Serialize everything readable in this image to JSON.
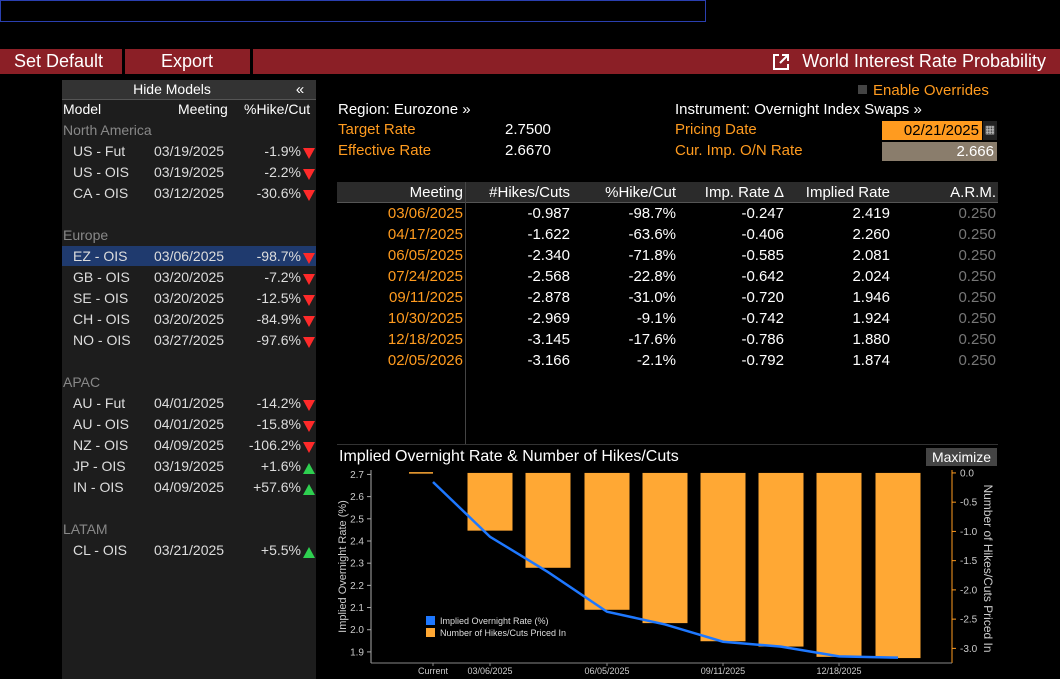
{
  "toolbar": {
    "set_default": "Set Default",
    "export": "Export",
    "title": "World Interest Rate Probability"
  },
  "left_panel": {
    "hide_models": "Hide Models",
    "collapse_glyph": "«",
    "columns": {
      "model": "Model",
      "meeting": "Meeting",
      "hike_cut": "%Hike/Cut"
    },
    "groups": [
      {
        "name": "North America",
        "rows": [
          {
            "model": "US - Fut",
            "meeting": "03/19/2025",
            "pct": "-1.9%",
            "dir": "down"
          },
          {
            "model": "US - OIS",
            "meeting": "03/19/2025",
            "pct": "-2.2%",
            "dir": "down"
          },
          {
            "model": "CA - OIS",
            "meeting": "03/12/2025",
            "pct": "-30.6%",
            "dir": "down"
          }
        ]
      },
      {
        "name": "Europe",
        "rows": [
          {
            "model": "EZ - OIS",
            "meeting": "03/06/2025",
            "pct": "-98.7%",
            "dir": "down",
            "selected": true
          },
          {
            "model": "GB - OIS",
            "meeting": "03/20/2025",
            "pct": "-7.2%",
            "dir": "down"
          },
          {
            "model": "SE - OIS",
            "meeting": "03/20/2025",
            "pct": "-12.5%",
            "dir": "down"
          },
          {
            "model": "CH - OIS",
            "meeting": "03/20/2025",
            "pct": "-84.9%",
            "dir": "down"
          },
          {
            "model": "NO - OIS",
            "meeting": "03/27/2025",
            "pct": "-97.6%",
            "dir": "down"
          }
        ]
      },
      {
        "name": "APAC",
        "rows": [
          {
            "model": "AU - Fut",
            "meeting": "04/01/2025",
            "pct": "-14.2%",
            "dir": "down"
          },
          {
            "model": "AU - OIS",
            "meeting": "04/01/2025",
            "pct": "-15.8%",
            "dir": "down"
          },
          {
            "model": "NZ - OIS",
            "meeting": "04/09/2025",
            "pct": "-106.2%",
            "dir": "down"
          },
          {
            "model": "JP - OIS",
            "meeting": "03/19/2025",
            "pct": "+1.6%",
            "dir": "up"
          },
          {
            "model": "IN - OIS",
            "meeting": "04/09/2025",
            "pct": "+57.6%",
            "dir": "up"
          }
        ]
      },
      {
        "name": "LATAM",
        "rows": [
          {
            "model": "CL - OIS",
            "meeting": "03/21/2025",
            "pct": "+5.5%",
            "dir": "up"
          }
        ]
      }
    ]
  },
  "info": {
    "enable_overrides": "Enable Overrides",
    "region": "Region: Eurozone »",
    "instrument": "Instrument: Overnight Index Swaps »",
    "target_rate_label": "Target Rate",
    "target_rate": "2.7500",
    "effective_rate_label": "Effective Rate",
    "effective_rate": "2.6670",
    "pricing_date_label": "Pricing Date",
    "pricing_date": "02/21/2025",
    "cur_imp_label": "Cur. Imp. O/N Rate",
    "cur_imp": "2.666"
  },
  "table": {
    "headers": [
      "Meeting",
      "#Hikes/Cuts",
      "%Hike/Cut",
      "Imp. Rate Δ",
      "Implied Rate",
      "A.R.M."
    ],
    "rows": [
      [
        "03/06/2025",
        "-0.987",
        "-98.7%",
        "-0.247",
        "2.419",
        "0.250"
      ],
      [
        "04/17/2025",
        "-1.622",
        "-63.6%",
        "-0.406",
        "2.260",
        "0.250"
      ],
      [
        "06/05/2025",
        "-2.340",
        "-71.8%",
        "-0.585",
        "2.081",
        "0.250"
      ],
      [
        "07/24/2025",
        "-2.568",
        "-22.8%",
        "-0.642",
        "2.024",
        "0.250"
      ],
      [
        "09/11/2025",
        "-2.878",
        "-31.0%",
        "-0.720",
        "1.946",
        "0.250"
      ],
      [
        "10/30/2025",
        "-2.969",
        "-9.1%",
        "-0.742",
        "1.924",
        "0.250"
      ],
      [
        "12/18/2025",
        "-3.145",
        "-17.6%",
        "-0.786",
        "1.880",
        "0.250"
      ],
      [
        "02/05/2026",
        "-3.166",
        "-2.1%",
        "-0.792",
        "1.874",
        "0.250"
      ]
    ]
  },
  "chart": {
    "title": "Implied Overnight Rate & Number of Hikes/Cuts",
    "maximize": "Maximize"
  },
  "chart_data": {
    "type": "bar",
    "title": "Implied Overnight Rate & Number of Hikes/Cuts",
    "x_tick_labels": [
      "Current",
      "03/06/2025",
      "06/05/2025",
      "09/11/2025",
      "12/18/2025"
    ],
    "ylabel_left": "Implied Overnight Rate (%)",
    "ylabel_right": "Number of Hikes/Cuts Priced In",
    "ylim_left": [
      1.85,
      2.72
    ],
    "ylim_right": [
      -3.25,
      0.05
    ],
    "left_ticks": [
      "2.7",
      "2.6",
      "2.5",
      "2.4",
      "2.3",
      "2.2",
      "2.1",
      "2.0",
      "1.9"
    ],
    "right_ticks": [
      "0.0",
      "-0.5",
      "-1.0",
      "-1.5",
      "-2.0",
      "-2.5",
      "-3.0"
    ],
    "legend": [
      "Implied Overnight Rate (%)",
      "Number of Hikes/Cuts Priced In"
    ],
    "legend_position": "bottom-left",
    "categories": [
      "Current",
      "03/06/2025",
      "04/17/2025",
      "06/05/2025",
      "07/24/2025",
      "09/11/2025",
      "10/30/2025",
      "12/18/2025",
      "02/05/2026"
    ],
    "series": [
      {
        "name": "Implied Overnight Rate (%)",
        "type": "line",
        "color": "#1e78ff",
        "values": [
          2.666,
          2.419,
          2.26,
          2.081,
          2.024,
          1.946,
          1.924,
          1.88,
          1.874
        ]
      },
      {
        "name": "Number of Hikes/Cuts Priced In",
        "type": "bar",
        "color": "#ffa834",
        "values": [
          0,
          -0.987,
          -1.622,
          -2.34,
          -2.568,
          -2.878,
          -2.969,
          -3.145,
          -3.166
        ]
      }
    ]
  }
}
